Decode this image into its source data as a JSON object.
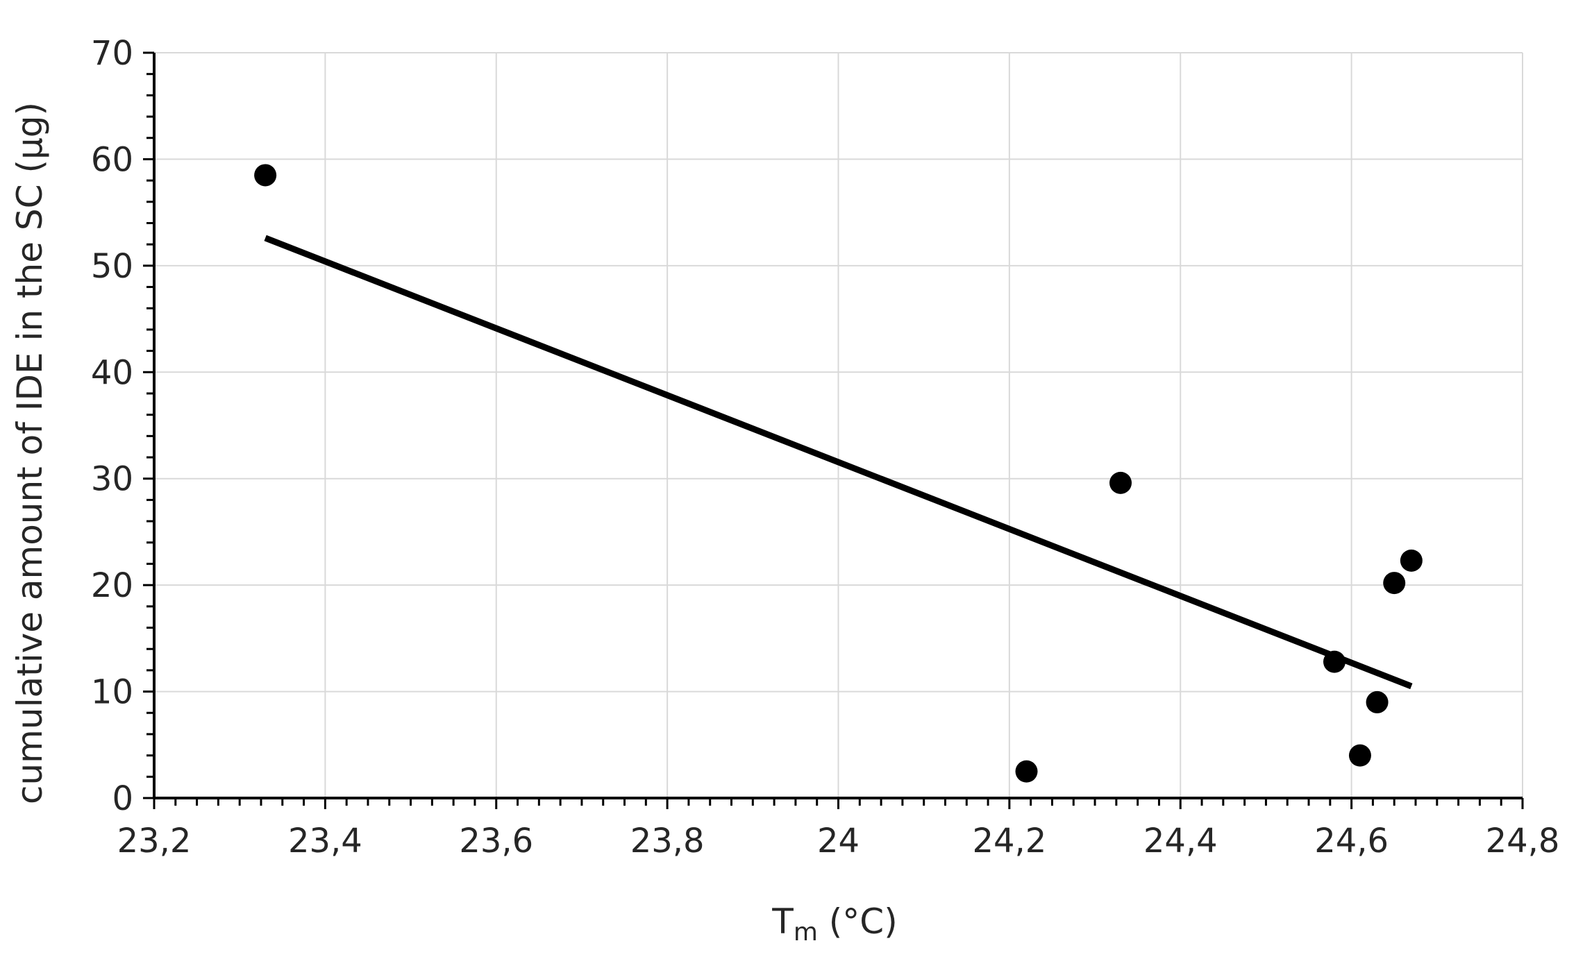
{
  "chart_data": {
    "type": "scatter",
    "title": "",
    "xlabel": "T",
    "xlabel_subscript": "m",
    "xlabel_suffix": " (°C)",
    "ylabel": "cumulative amount of IDE in the SC (µg)",
    "xlim": [
      23.2,
      24.8
    ],
    "ylim": [
      0,
      70
    ],
    "x_ticks": [
      23.2,
      23.4,
      23.6,
      23.8,
      24.0,
      24.2,
      24.4,
      24.6,
      24.8
    ],
    "x_tick_labels": [
      "23,2",
      "23,4",
      "23,6",
      "23,8",
      "24",
      "24,2",
      "24,4",
      "24,6",
      "24,8"
    ],
    "y_ticks": [
      0,
      10,
      20,
      30,
      40,
      50,
      60,
      70
    ],
    "y_tick_labels": [
      "0",
      "10",
      "20",
      "30",
      "40",
      "50",
      "60",
      "70"
    ],
    "x_minor_step": 0.025,
    "y_minor_step": 2,
    "grid": true,
    "legend": "none",
    "series": [
      {
        "kind": "points",
        "color": "#000000",
        "points": [
          {
            "x": 23.33,
            "y": 58.5
          },
          {
            "x": 24.22,
            "y": 2.5
          },
          {
            "x": 24.33,
            "y": 29.6
          },
          {
            "x": 24.58,
            "y": 12.8
          },
          {
            "x": 24.61,
            "y": 4.0
          },
          {
            "x": 24.63,
            "y": 9.0
          },
          {
            "x": 24.65,
            "y": 20.2
          },
          {
            "x": 24.67,
            "y": 22.3
          }
        ]
      },
      {
        "kind": "trendline",
        "color": "#000000",
        "points": [
          {
            "x": 23.33,
            "y": 52.6
          },
          {
            "x": 24.67,
            "y": 10.5
          }
        ]
      }
    ]
  }
}
